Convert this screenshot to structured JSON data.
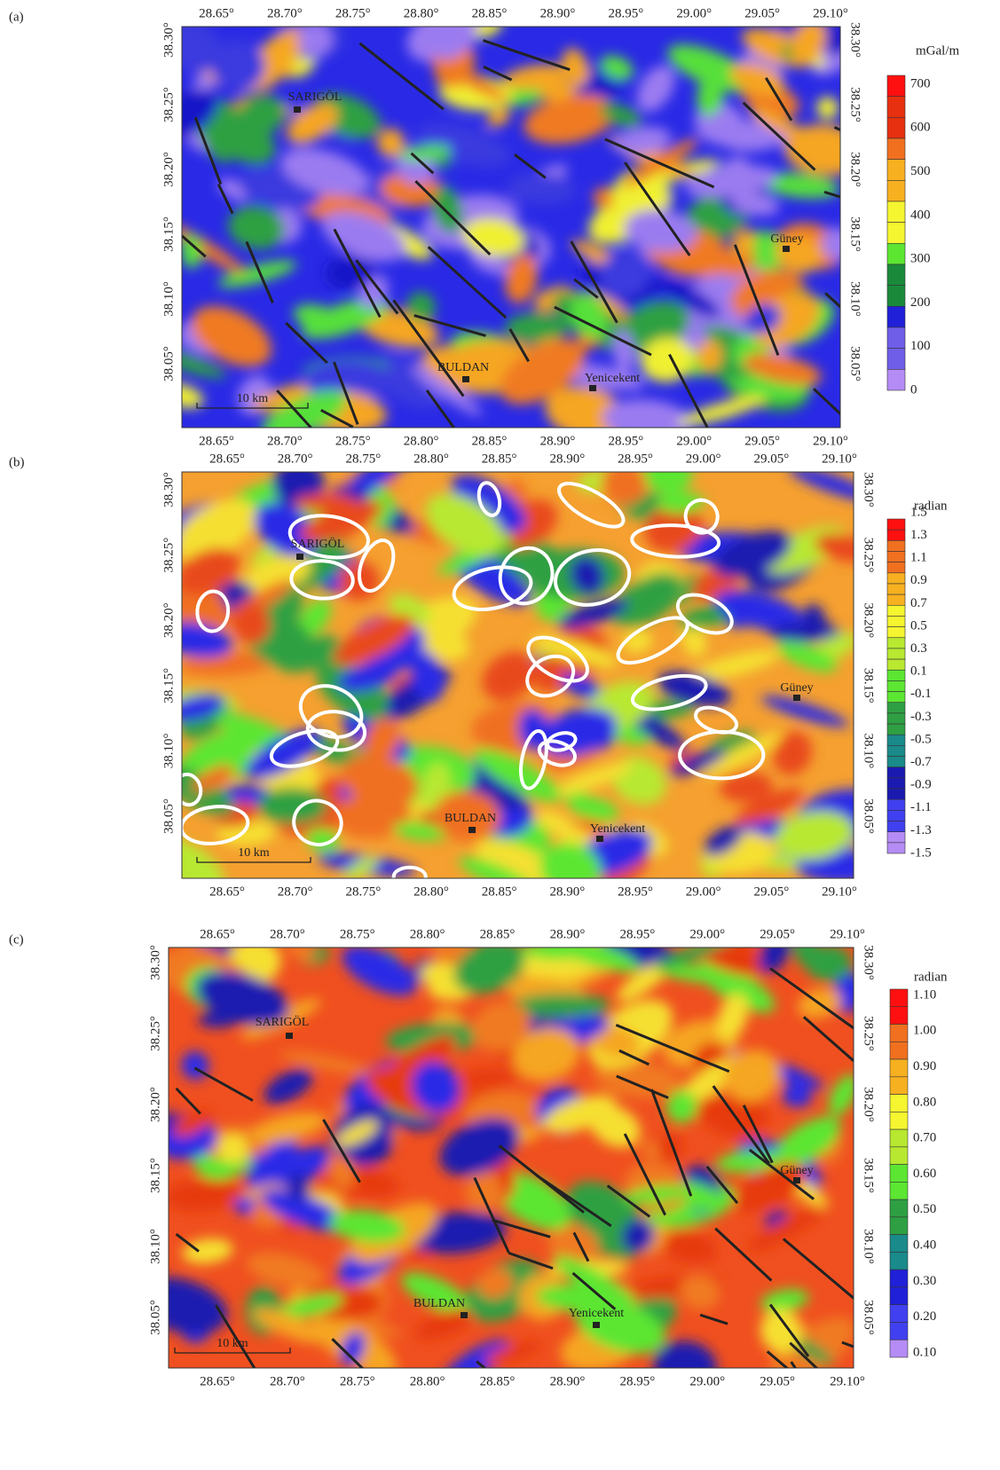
{
  "panels": [
    {
      "label": "(a)",
      "x_ticks": [
        "28.65°",
        "28.70°",
        "28.75°",
        "28.80°",
        "28.85°",
        "28.90°",
        "28.95°",
        "29.00°",
        "29.05°",
        "29.10°"
      ],
      "y_ticks": [
        "38.30°",
        "38.25°",
        "38.20°",
        "38.15°",
        "38.10°",
        "38.05°"
      ],
      "towns": [
        "SARIGÖL",
        "BULDAN",
        "Yenicekent",
        "Güney"
      ],
      "scale_bar": "10 km",
      "colorbar": {
        "title": "mGal/m",
        "labels": [
          "700",
          "600",
          "500",
          "400",
          "300",
          "200",
          "100",
          "0"
        ]
      }
    },
    {
      "label": "(b)",
      "x_ticks": [
        "28.65°",
        "28.70°",
        "28.75°",
        "28.80°",
        "28.85°",
        "28.90°",
        "28.95°",
        "29.00°",
        "29.05°",
        "29.10°"
      ],
      "y_ticks": [
        "38.30°",
        "38.25°",
        "38.20°",
        "38.15°",
        "38.10°",
        "38.05°"
      ],
      "towns": [
        "SARIGÖL",
        "BULDAN",
        "Yenicekent",
        "Güney"
      ],
      "scale_bar": "10 km",
      "colorbar": {
        "title": "radian",
        "labels": [
          "1.5",
          "1.3",
          "1.1",
          "0.9",
          "0.7",
          "0.5",
          "0.3",
          "0.1",
          "-0.1",
          "-0.3",
          "-0.5",
          "-0.7",
          "-0.9",
          "-1.1",
          "-1.3",
          "-1.5"
        ]
      }
    },
    {
      "label": "(c)",
      "x_ticks": [
        "28.65°",
        "28.70°",
        "28.75°",
        "28.80°",
        "28.85°",
        "28.90°",
        "28.95°",
        "29.00°",
        "29.05°",
        "29.10°"
      ],
      "y_ticks": [
        "38.30°",
        "38.25°",
        "38.20°",
        "38.15°",
        "38.10°",
        "38.05°"
      ],
      "towns": [
        "SARIGÖL",
        "BULDAN",
        "Yenicekent",
        "Güney"
      ],
      "scale_bar": "10 km",
      "colorbar": {
        "title": "radian",
        "labels": [
          "1.10",
          "1.00",
          "0.90",
          "0.80",
          "0.70",
          "0.60",
          "0.50",
          "0.40",
          "0.30",
          "0.20",
          "0.10"
        ]
      }
    }
  ]
}
